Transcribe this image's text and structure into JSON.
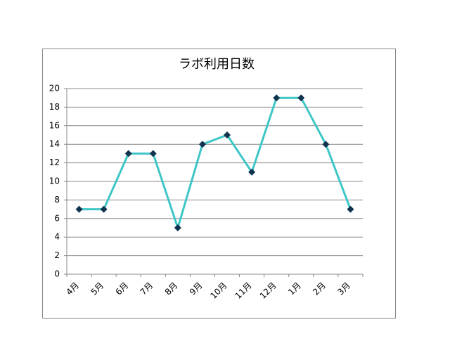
{
  "chart_data": {
    "type": "line",
    "title": "ラボ利用日数",
    "categories": [
      "4月",
      "5月",
      "6月",
      "7月",
      "8月",
      "9月",
      "10月",
      "11月",
      "12月",
      "1月",
      "2月",
      "3月"
    ],
    "values": [
      7,
      7,
      13,
      13,
      5,
      14,
      15,
      11,
      19,
      19,
      14,
      7
    ],
    "color": "#3fc6c6",
    "marker_color": "#10344f",
    "ylim": [
      0,
      20
    ],
    "yticks": [
      0,
      2,
      4,
      6,
      8,
      10,
      12,
      14,
      16,
      18,
      20
    ],
    "grid": true
  }
}
